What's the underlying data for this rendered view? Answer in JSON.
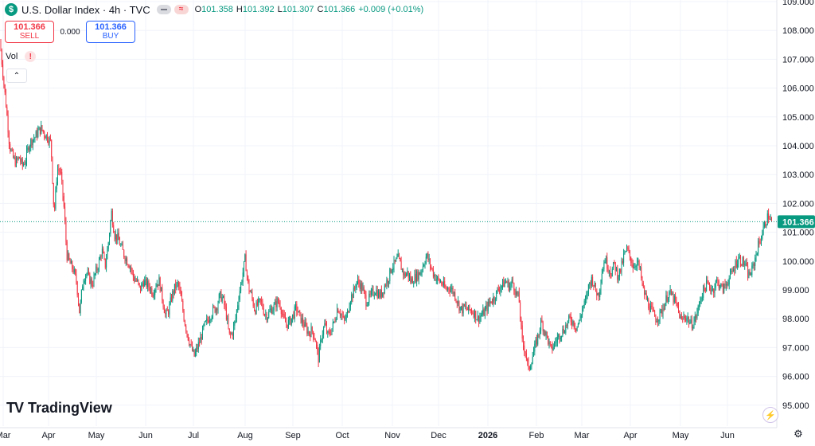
{
  "header": {
    "symbol_icon": "$",
    "title": "U.S. Dollar Index · 4h · TVC",
    "ohlc": [
      {
        "key": "O",
        "value": "101.358"
      },
      {
        "key": "H",
        "value": "101.392"
      },
      {
        "key": "L",
        "value": "101.307"
      },
      {
        "key": "C",
        "value": "101.366"
      },
      {
        "key": "",
        "value": "+0.009 (+0.01%)"
      }
    ],
    "icons": [
      "collapse-pill-icon",
      "approx-pill-icon"
    ],
    "approx_symbol": "≈"
  },
  "trade": {
    "sell_price": "101.366",
    "sell_label": "SELL",
    "spread": "0.000",
    "buy_price": "101.366",
    "buy_label": "BUY"
  },
  "volume": {
    "label": "Vol",
    "warning": "!"
  },
  "collapse_icon": "⌃",
  "brand": {
    "logo": "TV",
    "name": "TradingView"
  },
  "bolt_icon": "⚡",
  "gear_icon": "⚙",
  "colors": {
    "up": "#089981",
    "down": "#f23645",
    "last_price_bg": "#089981",
    "grid": "#f0f3fa"
  },
  "chart_data": {
    "type": "candlestick",
    "title": "",
    "xlabel": "",
    "ylabel": "",
    "ylim": [
      94.8,
      109.0
    ],
    "grid": true,
    "y_ticks": [
      "109.000",
      "108.000",
      "107.000",
      "106.000",
      "105.000",
      "104.000",
      "103.000",
      "102.000",
      "101.000",
      "100.000",
      "99.000",
      "98.000",
      "97.000",
      "96.000",
      "95.000"
    ],
    "x_ticks": [
      "Mar",
      "Apr",
      "May",
      "Jun",
      "Jul",
      "Aug",
      "Sep",
      "Oct",
      "Nov",
      "Dec",
      "2026",
      "Feb",
      "Mar",
      "Apr",
      "May",
      "Jun"
    ],
    "x_ticks_bold": [
      false,
      false,
      false,
      false,
      false,
      false,
      false,
      false,
      false,
      false,
      true,
      false,
      false,
      false,
      false,
      false
    ],
    "last_price": "101.366",
    "last_price_value": 101.366,
    "series": [
      {
        "values": [
          [
            0,
            107.6
          ],
          [
            4,
            106.4
          ],
          [
            8,
            105.3
          ],
          [
            12,
            104.0
          ],
          [
            16,
            103.6
          ],
          [
            20,
            103.4
          ],
          [
            24,
            103.6
          ],
          [
            28,
            103.3
          ],
          [
            32,
            103.5
          ],
          [
            36,
            104.0
          ],
          [
            40,
            104.2
          ],
          [
            44,
            104.3
          ],
          [
            48,
            104.5
          ],
          [
            52,
            104.6
          ],
          [
            56,
            104.4
          ],
          [
            60,
            104.3
          ],
          [
            64,
            104.1
          ],
          [
            68,
            101.6
          ],
          [
            72,
            103.2
          ],
          [
            76,
            103.1
          ],
          [
            80,
            102.0
          ],
          [
            84,
            100.2
          ],
          [
            88,
            99.9
          ],
          [
            92,
            99.7
          ],
          [
            96,
            99.3
          ],
          [
            100,
            98.2
          ],
          [
            104,
            99.3
          ],
          [
            108,
            99.6
          ],
          [
            112,
            99.4
          ],
          [
            116,
            99.2
          ],
          [
            120,
            99.6
          ],
          [
            124,
            99.9
          ],
          [
            128,
            100.4
          ],
          [
            132,
            99.8
          ],
          [
            136,
            100.6
          ],
          [
            140,
            101.7
          ],
          [
            144,
            100.9
          ],
          [
            148,
            100.8
          ],
          [
            152,
            100.5
          ],
          [
            156,
            100.2
          ],
          [
            160,
            100.0
          ],
          [
            164,
            99.8
          ],
          [
            168,
            99.4
          ],
          [
            172,
            99.3
          ],
          [
            176,
            99.0
          ],
          [
            180,
            99.3
          ],
          [
            184,
            99.2
          ],
          [
            188,
            99.1
          ],
          [
            192,
            98.9
          ],
          [
            196,
            99.2
          ],
          [
            200,
            99.3
          ],
          [
            204,
            98.7
          ],
          [
            208,
            98.1
          ],
          [
            212,
            98.3
          ],
          [
            216,
            98.8
          ],
          [
            220,
            99.1
          ],
          [
            224,
            99.2
          ],
          [
            228,
            98.6
          ],
          [
            232,
            97.9
          ],
          [
            236,
            97.4
          ],
          [
            240,
            97.0
          ],
          [
            244,
            96.7
          ],
          [
            248,
            97.0
          ],
          [
            252,
            97.3
          ],
          [
            256,
            97.7
          ],
          [
            260,
            97.9
          ],
          [
            264,
            98.1
          ],
          [
            268,
            98.3
          ],
          [
            272,
            98.4
          ],
          [
            276,
            98.8
          ],
          [
            280,
            98.7
          ],
          [
            284,
            98.2
          ],
          [
            288,
            97.4
          ],
          [
            292,
            97.5
          ],
          [
            296,
            98.0
          ],
          [
            300,
            98.8
          ],
          [
            304,
            99.4
          ],
          [
            308,
            100.1
          ],
          [
            312,
            99.1
          ],
          [
            316,
            98.8
          ],
          [
            320,
            98.3
          ],
          [
            324,
            98.5
          ],
          [
            328,
            98.6
          ],
          [
            332,
            98.2
          ],
          [
            336,
            98.1
          ],
          [
            340,
            98.3
          ],
          [
            344,
            98.4
          ],
          [
            348,
            98.6
          ],
          [
            352,
            98.5
          ],
          [
            356,
            98.0
          ],
          [
            360,
            97.8
          ],
          [
            364,
            97.9
          ],
          [
            368,
            98.1
          ],
          [
            372,
            98.4
          ],
          [
            376,
            98.1
          ],
          [
            380,
            97.9
          ],
          [
            384,
            97.7
          ],
          [
            388,
            97.5
          ],
          [
            392,
            97.6
          ],
          [
            396,
            97.3
          ],
          [
            400,
            96.6
          ],
          [
            404,
            97.4
          ],
          [
            408,
            97.8
          ],
          [
            412,
            97.4
          ],
          [
            416,
            97.6
          ],
          [
            420,
            97.9
          ],
          [
            424,
            98.4
          ],
          [
            428,
            98.2
          ],
          [
            432,
            97.9
          ],
          [
            436,
            98.1
          ],
          [
            440,
            98.7
          ],
          [
            444,
            98.9
          ],
          [
            448,
            99.3
          ],
          [
            452,
            99.2
          ],
          [
            456,
            99.0
          ],
          [
            460,
            98.6
          ],
          [
            464,
            98.7
          ],
          [
            468,
            98.9
          ],
          [
            472,
            99.0
          ],
          [
            476,
            98.8
          ],
          [
            480,
            98.9
          ],
          [
            484,
            99.2
          ],
          [
            488,
            99.4
          ],
          [
            492,
            99.8
          ],
          [
            496,
            99.9
          ],
          [
            500,
            100.1
          ],
          [
            504,
            99.8
          ],
          [
            508,
            99.5
          ],
          [
            512,
            99.6
          ],
          [
            516,
            99.3
          ],
          [
            520,
            99.4
          ],
          [
            524,
            99.5
          ],
          [
            528,
            99.6
          ],
          [
            532,
            99.9
          ],
          [
            536,
            100.2
          ],
          [
            540,
            99.9
          ],
          [
            544,
            99.6
          ],
          [
            548,
            99.4
          ],
          [
            552,
            99.3
          ],
          [
            556,
            99.2
          ],
          [
            560,
            99.0
          ],
          [
            564,
            99.1
          ],
          [
            568,
            99.0
          ],
          [
            572,
            98.8
          ],
          [
            576,
            98.5
          ],
          [
            580,
            98.3
          ],
          [
            584,
            98.4
          ],
          [
            588,
            98.3
          ],
          [
            592,
            98.3
          ],
          [
            596,
            98.2
          ],
          [
            600,
            98.0
          ],
          [
            604,
            98.1
          ],
          [
            608,
            98.2
          ],
          [
            612,
            98.4
          ],
          [
            616,
            98.6
          ],
          [
            620,
            98.7
          ],
          [
            624,
            98.9
          ],
          [
            628,
            99.1
          ],
          [
            632,
            99.2
          ],
          [
            636,
            99.3
          ],
          [
            640,
            99.1
          ],
          [
            644,
            99.3
          ],
          [
            648,
            98.9
          ],
          [
            652,
            98.7
          ],
          [
            656,
            97.2
          ],
          [
            660,
            96.9
          ],
          [
            664,
            96.2
          ],
          [
            668,
            96.6
          ],
          [
            672,
            97.0
          ],
          [
            676,
            97.4
          ],
          [
            680,
            97.9
          ],
          [
            684,
            97.6
          ],
          [
            688,
            97.3
          ],
          [
            692,
            96.9
          ],
          [
            696,
            97.1
          ],
          [
            700,
            97.3
          ],
          [
            704,
            97.5
          ],
          [
            708,
            97.6
          ],
          [
            712,
            97.8
          ],
          [
            716,
            98.0
          ],
          [
            720,
            97.9
          ],
          [
            724,
            97.7
          ],
          [
            728,
            97.9
          ],
          [
            732,
            98.4
          ],
          [
            736,
            98.6
          ],
          [
            740,
            99.2
          ],
          [
            744,
            99.4
          ],
          [
            748,
            99.0
          ],
          [
            752,
            98.8
          ],
          [
            756,
            99.6
          ],
          [
            760,
            100.1
          ],
          [
            764,
            99.8
          ],
          [
            768,
            99.6
          ],
          [
            772,
            99.9
          ],
          [
            776,
            99.5
          ],
          [
            780,
            99.7
          ],
          [
            784,
            100.2
          ],
          [
            788,
            100.4
          ],
          [
            792,
            100.1
          ],
          [
            796,
            99.8
          ],
          [
            800,
            100.0
          ],
          [
            804,
            99.7
          ],
          [
            808,
            99.0
          ],
          [
            812,
            98.7
          ],
          [
            816,
            98.4
          ],
          [
            820,
            98.2
          ],
          [
            824,
            98.0
          ],
          [
            828,
            98.1
          ],
          [
            832,
            98.3
          ],
          [
            836,
            98.6
          ],
          [
            840,
            98.9
          ],
          [
            844,
            98.8
          ],
          [
            848,
            98.6
          ],
          [
            852,
            98.3
          ],
          [
            856,
            97.9
          ],
          [
            860,
            98.1
          ],
          [
            864,
            98.0
          ],
          [
            868,
            97.8
          ],
          [
            872,
            97.9
          ],
          [
            876,
            98.2
          ],
          [
            880,
            98.7
          ],
          [
            884,
            99.0
          ],
          [
            888,
            99.2
          ],
          [
            892,
            99.1
          ],
          [
            896,
            99.0
          ],
          [
            900,
            99.3
          ],
          [
            904,
            99.2
          ],
          [
            908,
            99.0
          ],
          [
            912,
            99.2
          ],
          [
            916,
            99.4
          ],
          [
            920,
            99.6
          ],
          [
            924,
            99.9
          ],
          [
            928,
            100.1
          ],
          [
            932,
            100.0
          ],
          [
            936,
            99.9
          ],
          [
            940,
            99.5
          ],
          [
            944,
            99.6
          ],
          [
            948,
            100.0
          ],
          [
            952,
            100.5
          ],
          [
            956,
            100.8
          ],
          [
            960,
            101.2
          ],
          [
            964,
            101.5
          ],
          [
            966,
            101.6
          ],
          [
            968,
            101.4
          ],
          [
            970,
            101.37
          ]
        ]
      }
    ]
  }
}
